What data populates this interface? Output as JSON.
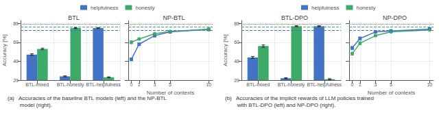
{
  "chart_data": [
    {
      "type": "bar",
      "title": "BTL",
      "categories": [
        "BTL-mixed",
        "BTL-honesty",
        "BTL-helpfulness"
      ],
      "series": [
        {
          "name": "helpfulness",
          "color": "#4472C4",
          "values": [
            47,
            24,
            75
          ],
          "errors": [
            0.8,
            0.5,
            0.5
          ]
        },
        {
          "name": "honesty",
          "color": "#3daa6a",
          "values": [
            53,
            75,
            23
          ],
          "errors": [
            0.8,
            0.5,
            0.5
          ]
        }
      ],
      "ylabel": "Accuracy [%]",
      "ylim": [
        20,
        83
      ],
      "yticks": [
        20,
        40,
        60,
        80
      ],
      "grid": true,
      "legend": "top",
      "reference_lines": [
        {
          "value": 79.5,
          "color": "#888888",
          "line_style": "dotted"
        },
        {
          "value": 76,
          "color": "#3daa6a",
          "line_style": "dashed"
        },
        {
          "value": 73,
          "color": "#4472C4",
          "line_style": "dashed"
        }
      ],
      "caption": "(a)   Accuracies of the baseline BTL models (left) and the NP-BTL\n        model (right)."
    },
    {
      "type": "line",
      "title": "NP-BTL",
      "x": [
        0,
        1,
        3,
        5,
        10
      ],
      "series": [
        {
          "name": "helpfulness",
          "color": "#4472C4",
          "marker": "square",
          "values": [
            42,
            58,
            67,
            71,
            73.5
          ],
          "errors": [
            1.5,
            1.5,
            1.0,
            0.8,
            0.5
          ]
        },
        {
          "name": "honesty",
          "color": "#3daa6a",
          "marker": "circle",
          "values": [
            60,
            63.5,
            69,
            71.5,
            74
          ],
          "errors": [
            1.5,
            1.2,
            1.0,
            0.8,
            0.5
          ]
        }
      ],
      "xlabel": "Number of contexts",
      "xlim": [
        -0.4,
        10.5
      ],
      "xticks": [
        0,
        1,
        3,
        5,
        10
      ],
      "ylim": [
        20,
        83
      ],
      "yticks": [
        20,
        40,
        60,
        80
      ],
      "grid": true,
      "tick_labels": "x",
      "reference_lines": [
        {
          "value": 79.5,
          "color": "#888888",
          "line_style": "dotted"
        },
        {
          "value": 76,
          "color": "#3daa6a",
          "line_style": "dashed"
        },
        {
          "value": 73,
          "color": "#4472C4",
          "line_style": "dashed"
        }
      ]
    },
    {
      "type": "bar",
      "title": "BTL-DPO",
      "categories": [
        "BTL-mixed",
        "BTL-honesty",
        "BTL-helpfulness"
      ],
      "series": [
        {
          "name": "helpfulness",
          "color": "#4472C4",
          "values": [
            44,
            22,
            77
          ],
          "errors": [
            1.0,
            0.5,
            0.5
          ]
        },
        {
          "name": "honesty",
          "color": "#3daa6a",
          "values": [
            56,
            77,
            21
          ],
          "errors": [
            1.2,
            0.5,
            0.5
          ]
        }
      ],
      "ylabel": "Accuracy [%]",
      "ylim": [
        20,
        83
      ],
      "yticks": [
        20,
        40,
        60,
        80
      ],
      "grid": true,
      "legend": "top",
      "reference_lines": [
        {
          "value": 79.5,
          "color": "#888888",
          "line_style": "dotted"
        },
        {
          "value": 76,
          "color": "#3daa6a",
          "line_style": "dashed"
        },
        {
          "value": 73,
          "color": "#4472C4",
          "line_style": "dashed"
        }
      ],
      "caption": "(b)   Accuracies of the implicit rewards of LLM policies trained\n        with BTL-DPO (left) and NP-DPO (right)."
    },
    {
      "type": "line",
      "title": "NP-DPO",
      "x": [
        0,
        1,
        3,
        5,
        10
      ],
      "series": [
        {
          "name": "helpfulness",
          "color": "#4472C4",
          "marker": "square",
          "values": [
            54,
            64,
            71,
            72,
            74
          ],
          "errors": [
            1.5,
            1.5,
            1.0,
            0.8,
            0.5
          ]
        },
        {
          "name": "honesty",
          "color": "#3daa6a",
          "marker": "circle",
          "values": [
            48,
            59,
            67,
            71,
            73
          ],
          "errors": [
            1.5,
            1.5,
            1.0,
            0.8,
            0.5
          ]
        }
      ],
      "xlabel": "Number of contexts",
      "xlim": [
        -0.4,
        10.5
      ],
      "xticks": [
        0,
        1,
        3,
        5,
        10
      ],
      "ylim": [
        20,
        83
      ],
      "yticks": [
        20,
        40,
        60,
        80
      ],
      "grid": true,
      "tick_labels": "x",
      "reference_lines": [
        {
          "value": 79.5,
          "color": "#888888",
          "line_style": "dotted"
        },
        {
          "value": 76,
          "color": "#3daa6a",
          "line_style": "dashed"
        },
        {
          "value": 73,
          "color": "#4472C4",
          "line_style": "dashed"
        }
      ]
    }
  ]
}
